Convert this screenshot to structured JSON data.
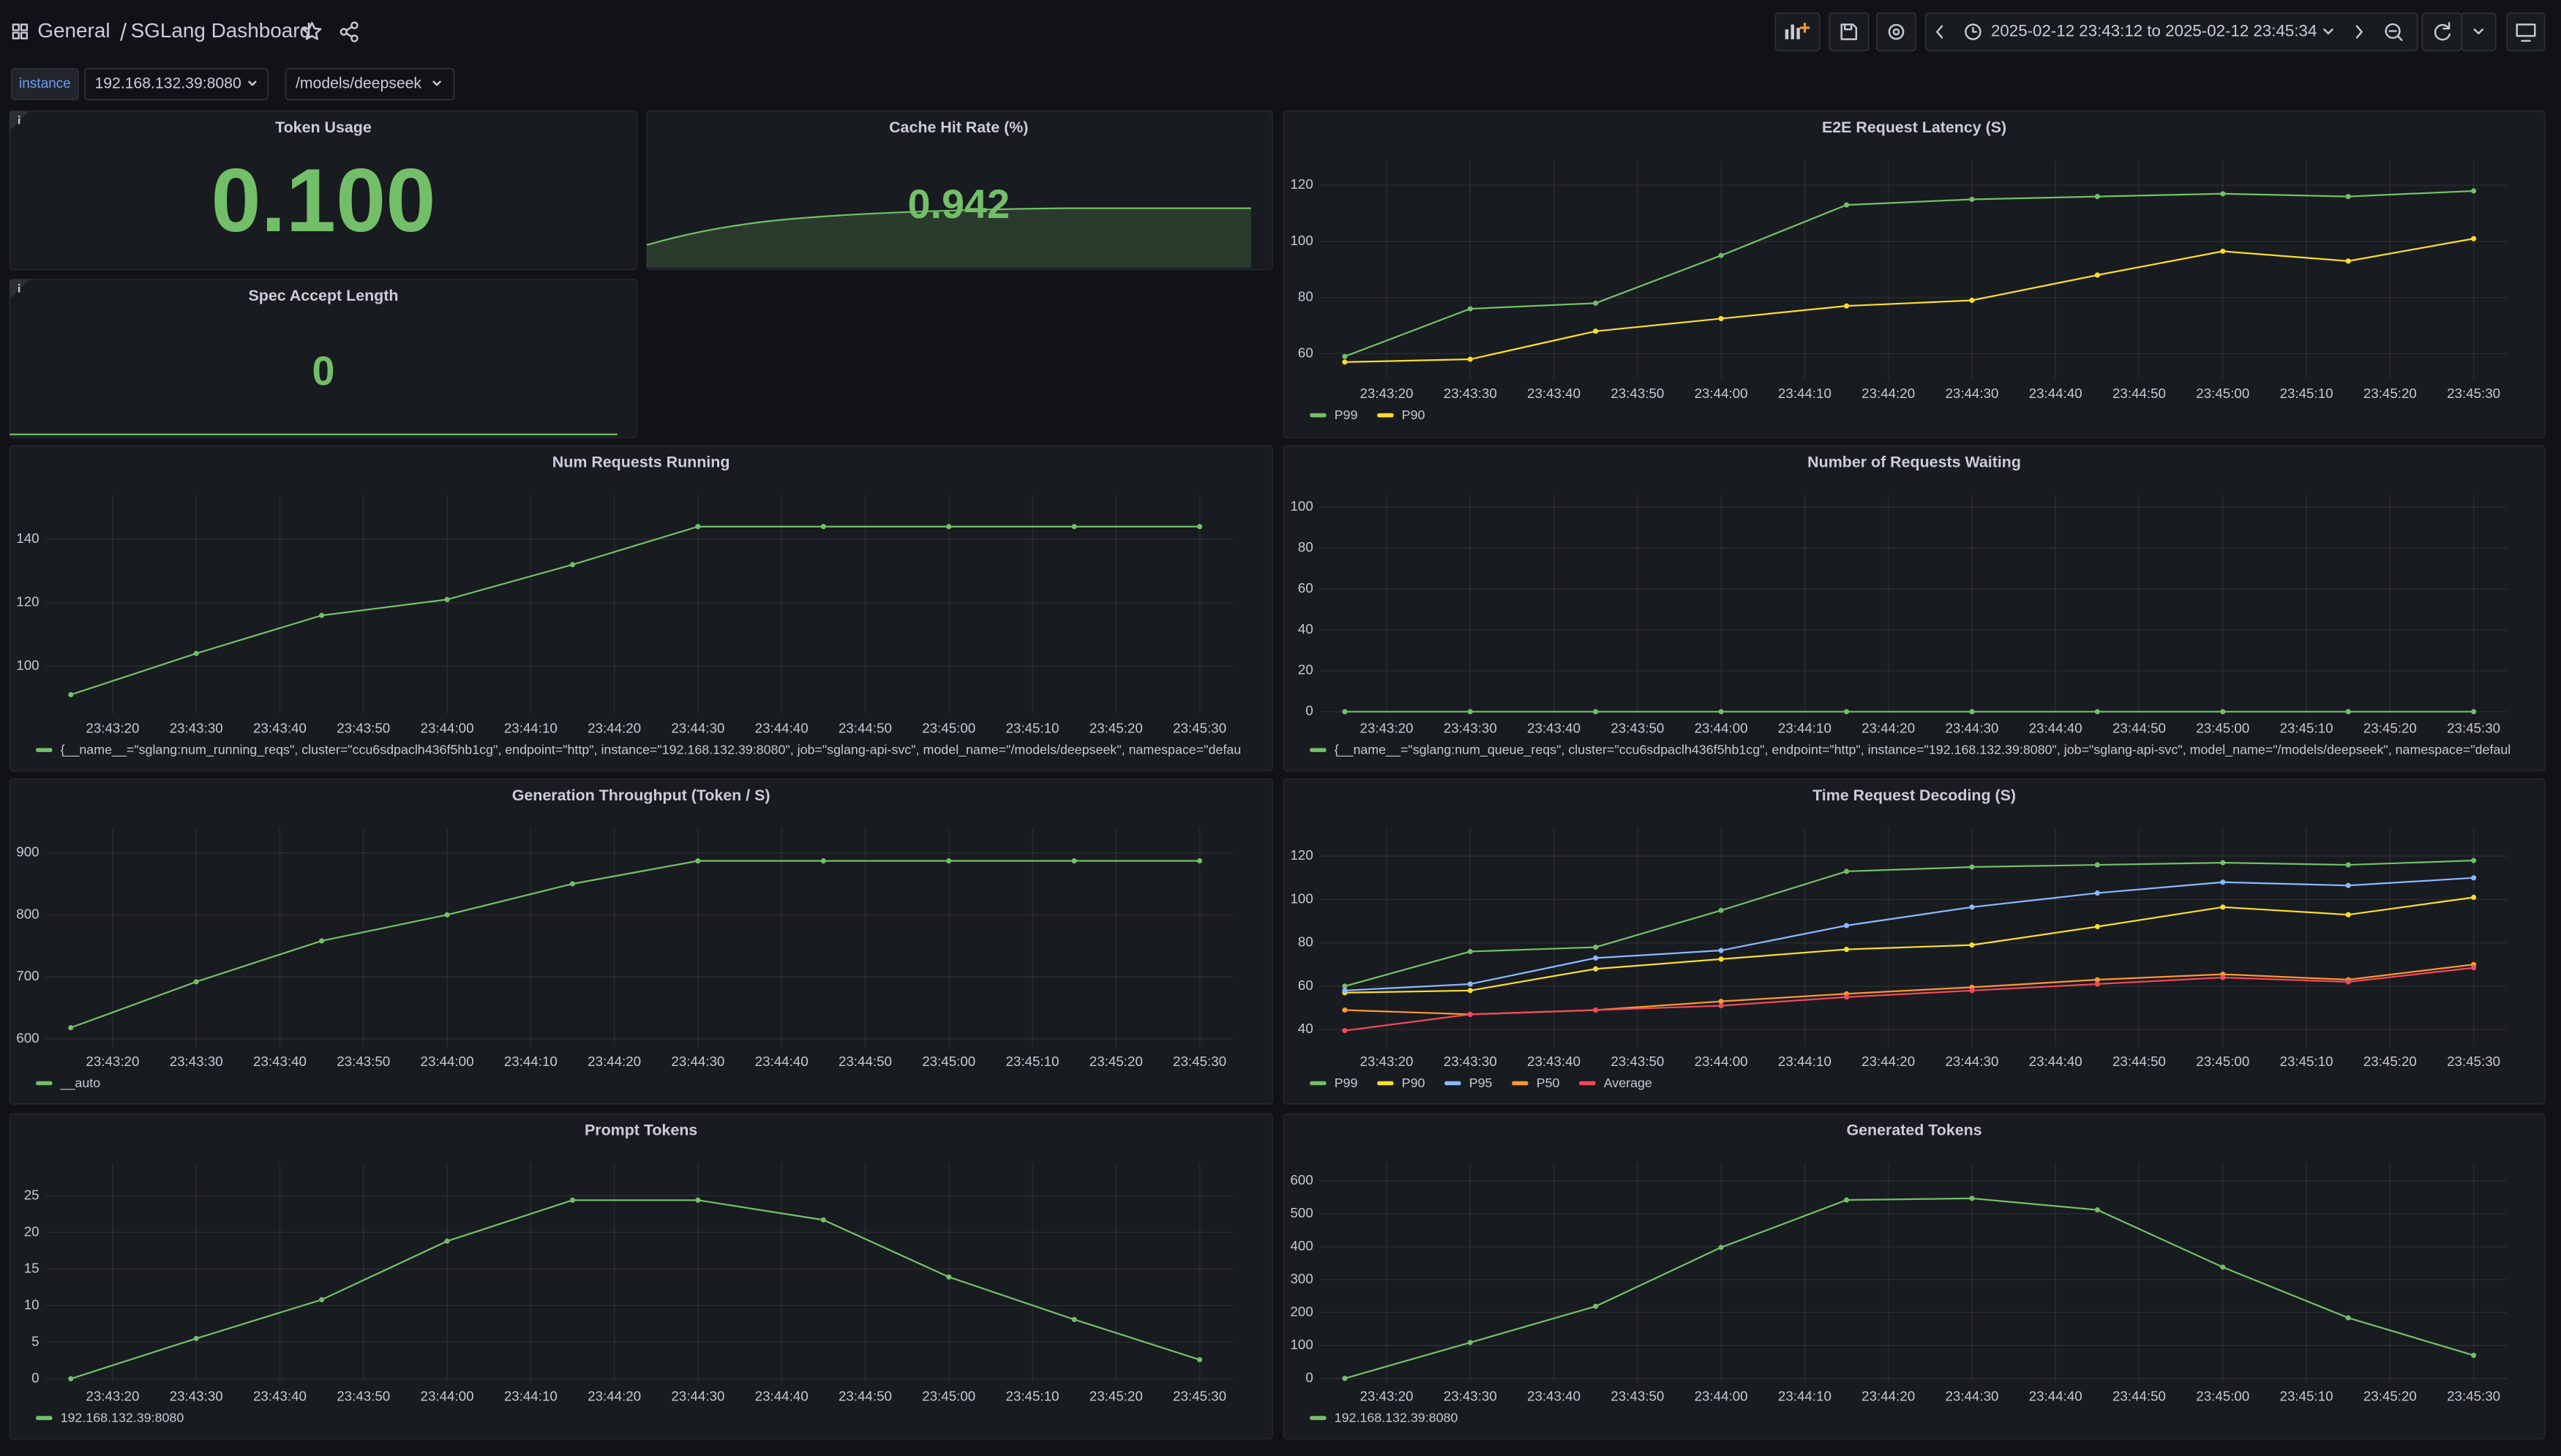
{
  "header": {
    "folder": "General",
    "title": "SGLang Dashboard",
    "time_range": "2025-02-12 23:43:12 to 2025-02-12 23:45:34"
  },
  "variables": [
    {
      "label": "instance",
      "value": "192.168.132.39:8080"
    },
    {
      "value": "/models/deepseek"
    }
  ],
  "stats": [
    {
      "title": "Token Usage",
      "value": 0.1,
      "value_label": "0.100"
    },
    {
      "title": "Cache Hit Rate (%)",
      "value": 0.942
    },
    {
      "title": "Spec Accept Length",
      "value": 0
    }
  ],
  "chart_data": [
    {
      "type": "line",
      "title": "E2E Request Latency (S)",
      "x": [
        "23:43:15",
        "23:43:30",
        "23:43:45",
        "23:44:00",
        "23:44:15",
        "23:44:30",
        "23:44:45",
        "23:45:00",
        "23:45:15",
        "23:45:30"
      ],
      "series": [
        {
          "name": "P99",
          "color": "#73bf69",
          "values": [
            59,
            76,
            78,
            95,
            113,
            115,
            116,
            117,
            116,
            118
          ]
        },
        {
          "name": "P90",
          "color": "#fade2a",
          "values": [
            57,
            58,
            68,
            72.5,
            77,
            79,
            88,
            96.5,
            93,
            101
          ]
        }
      ],
      "xlim": [
        "23:43:12",
        "23:45:34"
      ],
      "xticks": [
        "23:43:20",
        "23:43:30",
        "23:43:40",
        "23:43:50",
        "23:44:00",
        "23:44:10",
        "23:44:20",
        "23:44:30",
        "23:44:40",
        "23:44:50",
        "23:45:00",
        "23:45:10",
        "23:45:20",
        "23:45:30"
      ],
      "ylim": [
        51,
        129
      ],
      "yticks": [
        60,
        80,
        100,
        120
      ],
      "grid": true
    },
    {
      "type": "line",
      "title": "Num Requests Running",
      "x": [
        "23:43:15",
        "23:43:30",
        "23:43:45",
        "23:44:00",
        "23:44:15",
        "23:44:30",
        "23:44:45",
        "23:45:00",
        "23:45:15",
        "23:45:30"
      ],
      "series": [
        {
          "name": "{__name__=\"sglang:num_running_reqs\", cluster=\"ccu6sdpaclh436f5hb1cg\", endpoint=\"http\", instance=\"192.168.132.39:8080\", job=\"sglang-api-svc\", model_name=\"/models/deepseek\", namespace=\"defau",
          "color": "#73bf69",
          "values": [
            91,
            104,
            116,
            121,
            132,
            144,
            144,
            144,
            144,
            144
          ]
        }
      ],
      "xlim": [
        "23:43:12",
        "23:45:34"
      ],
      "xticks": [
        "23:43:20",
        "23:43:30",
        "23:43:40",
        "23:43:50",
        "23:44:00",
        "23:44:10",
        "23:44:20",
        "23:44:30",
        "23:44:40",
        "23:44:50",
        "23:45:00",
        "23:45:10",
        "23:45:20",
        "23:45:30"
      ],
      "ylim": [
        85,
        154
      ],
      "yticks": [
        100,
        120,
        140
      ],
      "grid": true
    },
    {
      "type": "line",
      "title": "Number of Requests Waiting",
      "x": [
        "23:43:15",
        "23:43:30",
        "23:43:45",
        "23:44:00",
        "23:44:15",
        "23:44:30",
        "23:44:45",
        "23:45:00",
        "23:45:15",
        "23:45:30"
      ],
      "series": [
        {
          "name": "{__name__=\"sglang:num_queue_reqs\", cluster=\"ccu6sdpaclh436f5hb1cg\", endpoint=\"http\", instance=\"192.168.132.39:8080\", job=\"sglang-api-svc\", model_name=\"/models/deepseek\", namespace=\"defaul",
          "color": "#73bf69",
          "values": [
            0,
            0,
            0,
            0,
            0,
            0,
            0,
            0,
            0,
            0
          ]
        }
      ],
      "xlim": [
        "23:43:12",
        "23:45:34"
      ],
      "xticks": [
        "23:43:20",
        "23:43:30",
        "23:43:40",
        "23:43:50",
        "23:44:00",
        "23:44:10",
        "23:44:20",
        "23:44:30",
        "23:44:40",
        "23:44:50",
        "23:45:00",
        "23:45:10",
        "23:45:20",
        "23:45:30"
      ],
      "ylim": [
        -1,
        106
      ],
      "yticks": [
        0,
        20,
        40,
        60,
        80,
        100
      ],
      "grid": true
    },
    {
      "type": "line",
      "title": "Generation Throughput (Token / S)",
      "x": [
        "23:43:15",
        "23:43:30",
        "23:43:45",
        "23:44:00",
        "23:44:15",
        "23:44:30",
        "23:44:45",
        "23:45:00",
        "23:45:15",
        "23:45:30"
      ],
      "series": [
        {
          "name": "__auto",
          "color": "#73bf69",
          "values": [
            618,
            692,
            758,
            800,
            850,
            887,
            887,
            887,
            887,
            887
          ]
        }
      ],
      "xlim": [
        "23:43:12",
        "23:45:34"
      ],
      "xticks": [
        "23:43:20",
        "23:43:30",
        "23:43:40",
        "23:43:50",
        "23:44:00",
        "23:44:10",
        "23:44:20",
        "23:44:30",
        "23:44:40",
        "23:44:50",
        "23:45:00",
        "23:45:10",
        "23:45:20",
        "23:45:30"
      ],
      "ylim": [
        587,
        940
      ],
      "yticks": [
        600,
        700,
        800,
        900
      ],
      "grid": true
    },
    {
      "type": "line",
      "title": "Time Request Decoding (S)",
      "x": [
        "23:43:15",
        "23:43:30",
        "23:43:45",
        "23:44:00",
        "23:44:15",
        "23:44:30",
        "23:44:45",
        "23:45:00",
        "23:45:15",
        "23:45:30"
      ],
      "series": [
        {
          "name": "P99",
          "color": "#73bf69",
          "values": [
            60,
            76,
            78,
            95,
            113,
            115,
            116,
            117,
            116,
            118
          ]
        },
        {
          "name": "P90",
          "color": "#fade2a",
          "values": [
            57,
            58,
            68,
            72.5,
            77,
            79,
            87.5,
            96.5,
            93,
            101
          ]
        },
        {
          "name": "P95",
          "color": "#8ab8ff",
          "values": [
            58,
            61,
            73,
            76.5,
            88,
            96.5,
            103,
            108,
            106.5,
            110
          ]
        },
        {
          "name": "P50",
          "color": "#ff9830",
          "values": [
            49,
            47,
            49,
            53,
            56.5,
            59.5,
            63,
            65.5,
            63,
            70
          ]
        },
        {
          "name": "Average",
          "color": "#f2495c",
          "values": [
            39.5,
            47,
            49,
            51,
            55,
            58,
            61,
            64,
            62,
            68.5
          ]
        }
      ],
      "xlim": [
        "23:43:12",
        "23:45:34"
      ],
      "xticks": [
        "23:43:20",
        "23:43:30",
        "23:43:40",
        "23:43:50",
        "23:44:00",
        "23:44:10",
        "23:44:20",
        "23:44:30",
        "23:44:40",
        "23:44:50",
        "23:45:00",
        "23:45:10",
        "23:45:20",
        "23:45:30"
      ],
      "ylim": [
        32,
        133
      ],
      "yticks": [
        40,
        60,
        80,
        100,
        120
      ],
      "grid": true
    },
    {
      "type": "line",
      "title": "Prompt Tokens",
      "x": [
        "23:43:15",
        "23:43:30",
        "23:43:45",
        "23:44:00",
        "23:44:15",
        "23:44:30",
        "23:44:45",
        "23:45:00",
        "23:45:15",
        "23:45:30"
      ],
      "series": [
        {
          "name": "192.168.132.39:8080",
          "color": "#73bf69",
          "values": [
            0,
            5.5,
            10.8,
            18.8,
            24.4,
            24.4,
            21.7,
            13.9,
            8.1,
            2.6
          ]
        }
      ],
      "xlim": [
        "23:43:12",
        "23:45:34"
      ],
      "xticks": [
        "23:43:20",
        "23:43:30",
        "23:43:40",
        "23:43:50",
        "23:44:00",
        "23:44:10",
        "23:44:20",
        "23:44:30",
        "23:44:40",
        "23:44:50",
        "23:45:00",
        "23:45:10",
        "23:45:20",
        "23:45:30"
      ],
      "ylim": [
        -0.4,
        29.5
      ],
      "yticks": [
        0,
        5,
        10,
        15,
        20,
        25
      ],
      "grid": true
    },
    {
      "type": "line",
      "title": "Generated Tokens",
      "x": [
        "23:43:15",
        "23:43:30",
        "23:43:45",
        "23:44:00",
        "23:44:15",
        "23:44:30",
        "23:44:45",
        "23:45:00",
        "23:45:15",
        "23:45:30"
      ],
      "series": [
        {
          "name": "192.168.132.39:8080",
          "color": "#73bf69",
          "values": [
            0,
            109,
            219,
            398,
            542,
            547,
            512,
            338,
            184,
            70
          ]
        }
      ],
      "xlim": [
        "23:43:12",
        "23:45:34"
      ],
      "xticks": [
        "23:43:20",
        "23:43:30",
        "23:43:40",
        "23:43:50",
        "23:44:00",
        "23:44:10",
        "23:44:20",
        "23:44:30",
        "23:44:40",
        "23:44:50",
        "23:45:00",
        "23:45:10",
        "23:45:20",
        "23:45:30"
      ],
      "ylim": [
        -10,
        655
      ],
      "yticks": [
        0,
        100,
        200,
        300,
        400,
        500,
        600
      ],
      "grid": true
    }
  ]
}
